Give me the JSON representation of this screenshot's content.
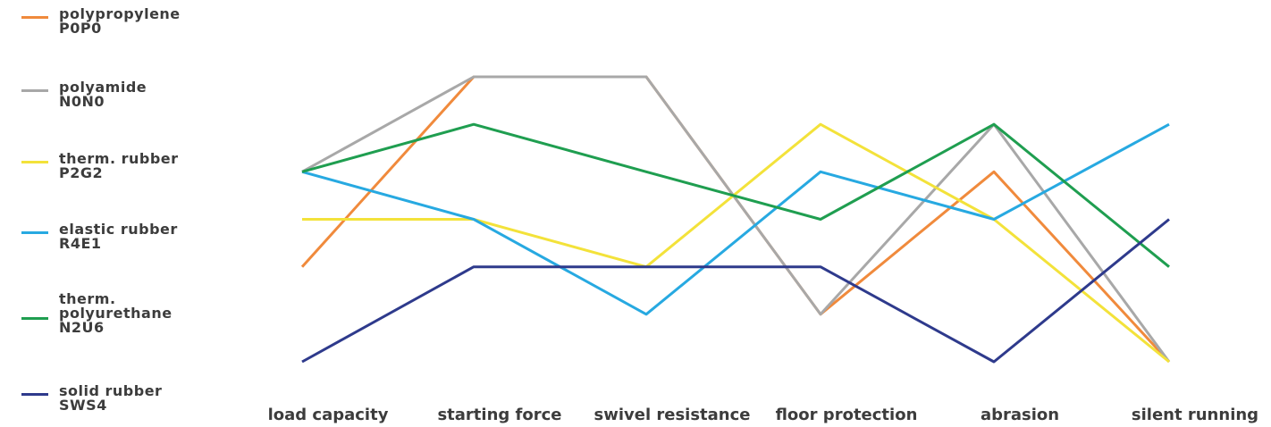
{
  "chart_data": {
    "type": "line",
    "categories": [
      "load capacity",
      "starting force",
      "swivel resistance",
      "floor protection",
      "abrasion",
      "silent running"
    ],
    "ylim": [
      0,
      6
    ],
    "grid": false,
    "legend_placement": "left",
    "series": [
      {
        "name_lines": [
          "polypropylene",
          "P0P0"
        ],
        "color": "#f08a3c",
        "values": [
          2,
          6,
          6,
          1,
          4,
          0
        ]
      },
      {
        "name_lines": [
          "polyamide",
          "N0N0"
        ],
        "color": "#a8a8a8",
        "values": [
          4,
          6,
          6,
          1,
          5,
          0
        ]
      },
      {
        "name_lines": [
          "therm. rubber",
          "P2G2"
        ],
        "color": "#f3e23a",
        "values": [
          3,
          3,
          2,
          5,
          3,
          0
        ]
      },
      {
        "name_lines": [
          "elastic rubber",
          "R4E1"
        ],
        "color": "#27a9e1",
        "values": [
          4,
          3,
          1,
          4,
          3,
          5
        ]
      },
      {
        "name_lines": [
          "therm.",
          "polyurethane",
          "N2U6"
        ],
        "color": "#1f9e50",
        "values": [
          4,
          5,
          4,
          3,
          5,
          2
        ]
      },
      {
        "name_lines": [
          "solid rubber",
          "SWS4"
        ],
        "color": "#2e3a8c",
        "values": [
          0,
          2,
          2,
          2,
          0,
          3
        ]
      }
    ]
  }
}
